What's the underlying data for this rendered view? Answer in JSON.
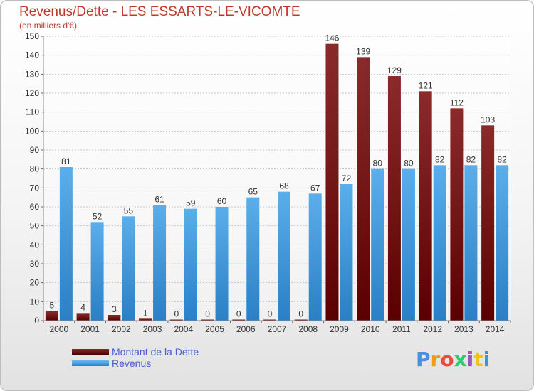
{
  "header": {
    "title": "Revenus/Dette - LES ESSARTS-LE-VICOMTE",
    "subtitle": "(en milliers d'€)"
  },
  "legend": {
    "items": [
      {
        "label": "Montant de la Dette",
        "color": "#6b0f0f"
      },
      {
        "label": "Revenus",
        "color": "#3a95dc"
      }
    ]
  },
  "logo": {
    "text": "Proxiti",
    "colors": [
      "#4a90d9",
      "#f39c12",
      "#e74c3c",
      "#2ecc71",
      "#9b59b6",
      "#f1c40f",
      "#3498db"
    ]
  },
  "chart_data": {
    "type": "bar",
    "title": "Revenus/Dette - LES ESSARTS-LE-VICOMTE",
    "ylabel": "(en milliers d'€)",
    "xlabel": "",
    "ylim": [
      0,
      150
    ],
    "yticks": [
      0,
      10,
      20,
      30,
      40,
      50,
      60,
      70,
      80,
      90,
      100,
      110,
      120,
      130,
      140,
      150
    ],
    "grid": true,
    "legend_position": "bottom-left",
    "categories": [
      "2000",
      "2001",
      "2002",
      "2003",
      "2004",
      "2005",
      "2006",
      "2007",
      "2008",
      "2009",
      "2010",
      "2011",
      "2012",
      "2013",
      "2014"
    ],
    "series": [
      {
        "name": "Montant de la Dette",
        "color": "#6b0f0f",
        "values": [
          5,
          4,
          3,
          1,
          0,
          0,
          0,
          0,
          0,
          146,
          139,
          129,
          121,
          112,
          103
        ]
      },
      {
        "name": "Revenus",
        "color": "#3a95dc",
        "values": [
          81,
          52,
          55,
          61,
          59,
          60,
          65,
          68,
          67,
          72,
          80,
          80,
          82,
          82,
          82
        ]
      }
    ]
  }
}
